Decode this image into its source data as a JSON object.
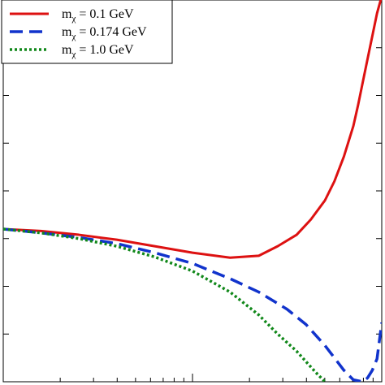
{
  "chart_data": {
    "type": "line",
    "title": "",
    "xlabel": "",
    "ylabel": "",
    "xscale": "log",
    "grid": false,
    "legend_position": "top-left",
    "xlim": [
      1,
      100
    ],
    "ylim": [
      0,
      1
    ],
    "series": [
      {
        "name": "m",
        "name_subscript": "χ",
        "name_rest": " = 0.1 GeV",
        "color": "#dd1111",
        "dash": "solid",
        "x": [
          1,
          1.58,
          2.51,
          3.98,
          6.31,
          10.0,
          15.8,
          22.4,
          28.2,
          35.5,
          42.2,
          50.1,
          56.2,
          63.1,
          70.8,
          75.0,
          79.4,
          84.1,
          89.1,
          94.4,
          100
        ],
        "y": [
          0.4,
          0.395,
          0.385,
          0.372,
          0.355,
          0.338,
          0.325,
          0.33,
          0.355,
          0.385,
          0.425,
          0.475,
          0.525,
          0.59,
          0.67,
          0.725,
          0.785,
          0.845,
          0.905,
          0.965,
          1.01
        ]
      },
      {
        "name": "m",
        "name_subscript": "χ",
        "name_rest": " = 0.174 GeV",
        "color": "#1133cc",
        "dash": "dashed",
        "x": [
          1,
          1.58,
          2.51,
          3.98,
          6.31,
          10.0,
          15.8,
          22.4,
          31.6,
          39.8,
          50.1,
          63.1,
          70.8,
          79.4,
          84.1,
          89.1,
          94.4,
          100
        ],
        "y": [
          0.4,
          0.39,
          0.378,
          0.362,
          0.338,
          0.31,
          0.27,
          0.235,
          0.19,
          0.15,
          0.095,
          0.03,
          0.005,
          0.0,
          0.01,
          0.03,
          0.06,
          0.155
        ]
      },
      {
        "name": "m",
        "name_subscript": "χ",
        "name_rest": " = 1.0 GeV",
        "color": "#11881a",
        "dash": "dotted",
        "x": [
          1,
          1.58,
          2.51,
          3.98,
          6.31,
          10.0,
          15.8,
          22.4,
          28.2,
          35.5,
          44.7,
          50.1,
          56.2
        ],
        "y": [
          0.4,
          0.39,
          0.375,
          0.355,
          0.327,
          0.29,
          0.235,
          0.175,
          0.125,
          0.08,
          0.025,
          0.0,
          -0.02
        ]
      }
    ]
  }
}
